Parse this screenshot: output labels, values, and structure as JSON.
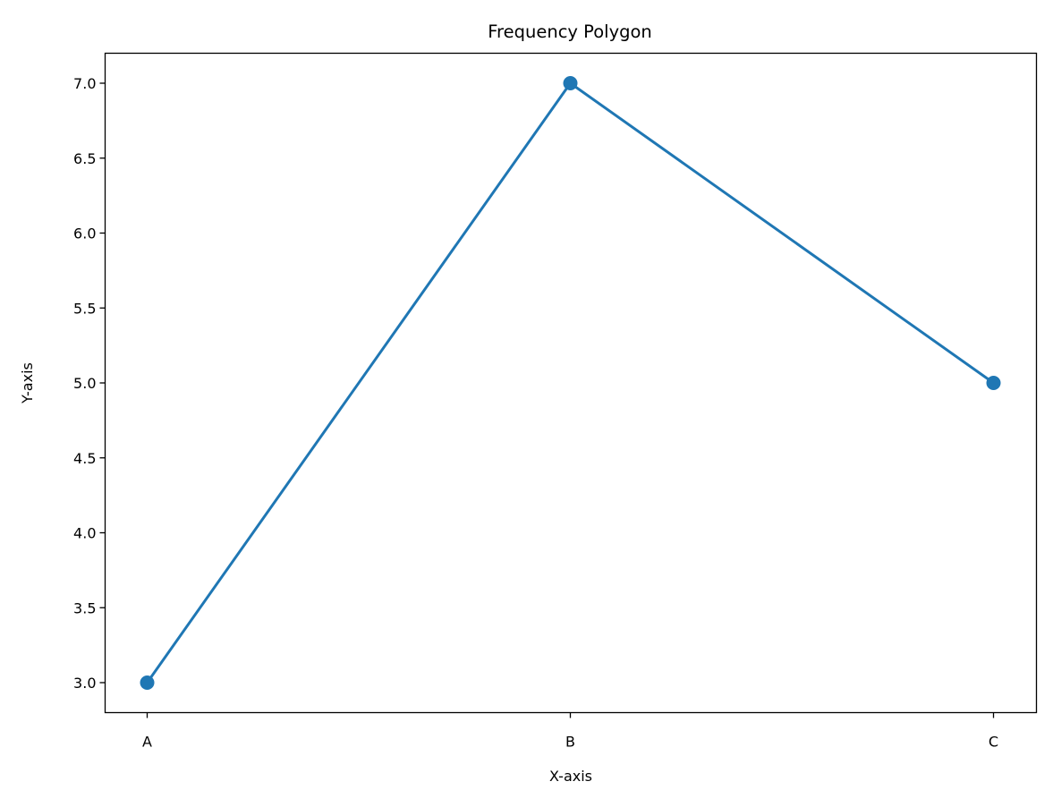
{
  "chart_data": {
    "type": "line",
    "title": "Frequency Polygon",
    "xlabel": "X-axis",
    "ylabel": "Y-axis",
    "categories": [
      "A",
      "B",
      "C"
    ],
    "series": [
      {
        "values": [
          3,
          7,
          5
        ]
      }
    ],
    "ylim": [
      2.8,
      7.2
    ],
    "yticks": [
      "3.0",
      "3.5",
      "4.0",
      "4.5",
      "5.0",
      "5.5",
      "6.0",
      "6.5",
      "7.0"
    ],
    "grid": false,
    "marker": "circle",
    "colors": {
      "series": "#1f77b4",
      "axes": "#000000",
      "background": "#ffffff"
    }
  }
}
